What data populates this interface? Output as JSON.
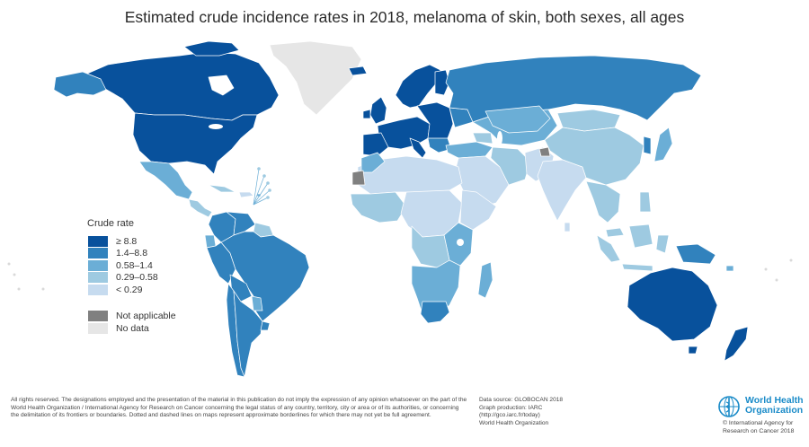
{
  "title": "Estimated crude incidence rates in 2018, melanoma of skin, both sexes, all ages",
  "legend": {
    "title": "Crude rate",
    "items": [
      {
        "label": "≥ 8.8",
        "color": "#08519c"
      },
      {
        "label": "1.4–8.8",
        "color": "#3182bd"
      },
      {
        "label": "0.58–1.4",
        "color": "#6baed6"
      },
      {
        "label": "0.29–0.58",
        "color": "#9ecae1"
      },
      {
        "label": "< 0.29",
        "color": "#c6dbef"
      }
    ],
    "extra": [
      {
        "label": "Not applicable",
        "color": "#808080"
      },
      {
        "label": "No data",
        "color": "#e6e6e6"
      }
    ]
  },
  "footer": {
    "disclaimer": "All rights reserved. The designations employed and the presentation of the material in this publication do not imply the expression of any opinion whatsoever on the part of the World Health Organization / International Agency for Research on Cancer concerning the legal status of any country, territory, city or area or of its authorities, or concerning the delimitation of its frontiers or boundaries. Dotted and dashed lines on maps represent approximate borderlines for which there may not yet be full agreement.",
    "source": "Data source: GLOBOCAN 2018",
    "production": "Graph production: IARC",
    "url": "(http://gco.iarc.fr/today)",
    "org": "World Health Organization"
  },
  "who": {
    "name_line1": "World Health",
    "name_line2": "Organization",
    "iarc_line1": "© International Agency for",
    "iarc_line2": "Research on Cancer 2018"
  }
}
